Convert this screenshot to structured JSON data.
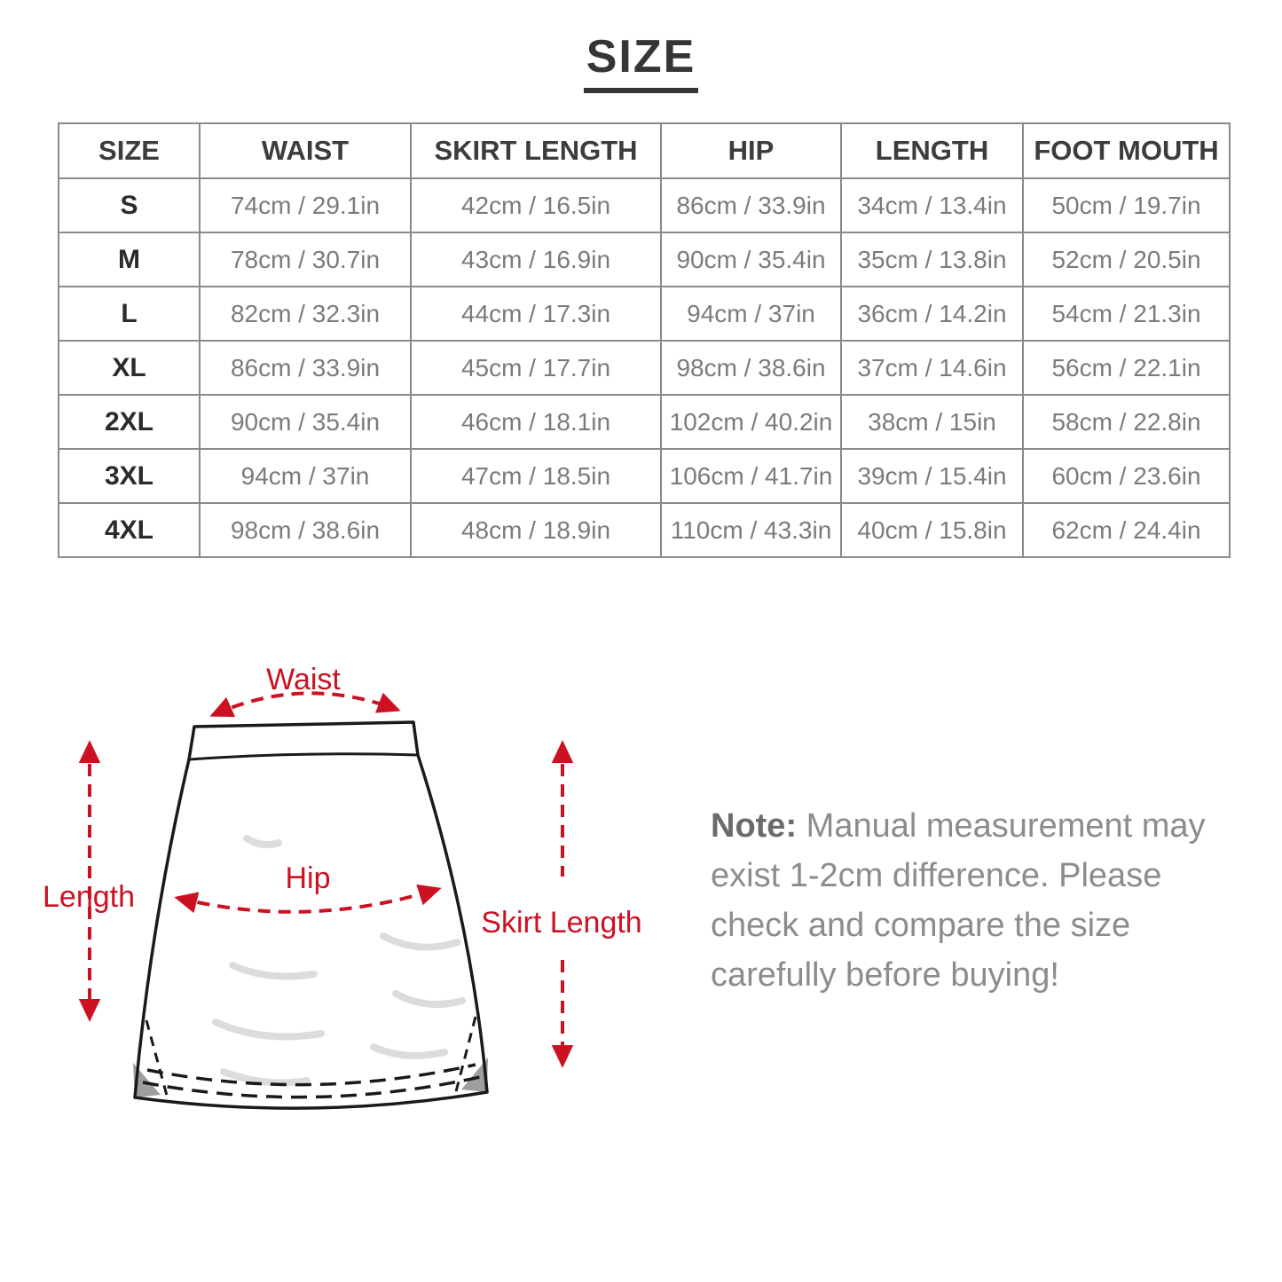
{
  "page": {
    "title": "SIZE"
  },
  "table": {
    "headers": [
      "SIZE",
      "WAIST",
      "SKIRT LENGTH",
      "HIP",
      "LENGTH",
      "FOOT MOUTH"
    ],
    "rows": [
      {
        "size": "S",
        "values": [
          "74cm / 29.1in",
          "42cm / 16.5in",
          "86cm / 33.9in",
          "34cm / 13.4in",
          "50cm / 19.7in"
        ]
      },
      {
        "size": "M",
        "values": [
          "78cm / 30.7in",
          "43cm / 16.9in",
          "90cm / 35.4in",
          "35cm / 13.8in",
          "52cm / 20.5in"
        ]
      },
      {
        "size": "L",
        "values": [
          "82cm / 32.3in",
          "44cm / 17.3in",
          "94cm / 37in",
          "36cm / 14.2in",
          "54cm / 21.3in"
        ]
      },
      {
        "size": "XL",
        "values": [
          "86cm / 33.9in",
          "45cm / 17.7in",
          "98cm / 38.6in",
          "37cm / 14.6in",
          "56cm / 22.1in"
        ]
      },
      {
        "size": "2XL",
        "values": [
          "90cm / 35.4in",
          "46cm / 18.1in",
          "102cm / 40.2in",
          "38cm / 15in",
          "58cm / 22.8in"
        ]
      },
      {
        "size": "3XL",
        "values": [
          "94cm / 37in",
          "47cm / 18.5in",
          "106cm / 41.7in",
          "39cm / 15.4in",
          "60cm / 23.6in"
        ]
      },
      {
        "size": "4XL",
        "values": [
          "98cm / 38.6in",
          "48cm / 18.9in",
          "110cm / 43.3in",
          "40cm / 15.8in",
          "62cm / 24.4in"
        ]
      }
    ]
  },
  "diagram": {
    "labels": {
      "waist": "Waist",
      "hip": "Hip",
      "length": "Length",
      "skirt_length": "Skirt Length"
    },
    "accent_color": "#cc1122",
    "outline_color": "#1a1a1a"
  },
  "note": {
    "label": "Note:",
    "text": " Manual measurement may\nexist 1-2cm difference. Please\ncheck and compare the size\ncarefully before buying!"
  }
}
